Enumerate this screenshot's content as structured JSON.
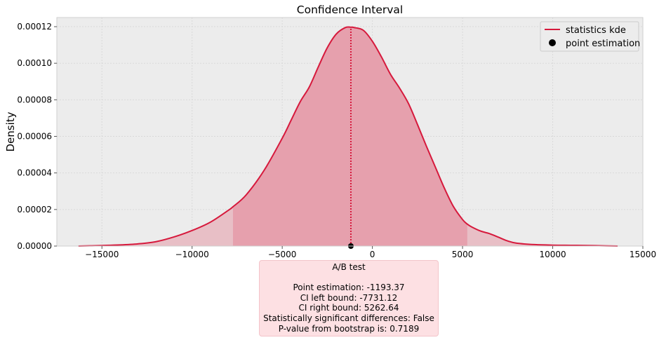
{
  "chart_data": {
    "type": "area",
    "title": "Confidence Interval",
    "xlabel": "",
    "ylabel": "Density",
    "xlim": [
      -17500,
      15000
    ],
    "ylim": [
      0,
      0.000125
    ],
    "xticks": [
      -15000,
      -10000,
      -5000,
      0,
      5000,
      10000,
      15000
    ],
    "xtick_labels": [
      "−15000",
      "−10000",
      "−5000",
      "0",
      "5000",
      "10000",
      "15000"
    ],
    "yticks": [
      0,
      2e-05,
      4e-05,
      6e-05,
      8e-05,
      0.0001,
      0.00012
    ],
    "ytick_labels": [
      "0.00000",
      "0.00002",
      "0.00004",
      "0.00006",
      "0.00008",
      "0.00010",
      "0.00012"
    ],
    "grid": true,
    "legend_position": "top-right",
    "series": [
      {
        "name": "statistics kde",
        "color": "#d6193c",
        "x": [
          -16300,
          -15000,
          -14000,
          -13000,
          -12000,
          -11000,
          -10000,
          -9000,
          -8000,
          -7731.12,
          -7000,
          -6000,
          -5000,
          -4500,
          -4000,
          -3500,
          -3000,
          -2500,
          -2000,
          -1500,
          -1193.37,
          -1000,
          -500,
          0,
          500,
          1000,
          1500,
          2000,
          2500,
          3000,
          3500,
          4000,
          4500,
          5000,
          5262.64,
          5500,
          6000,
          6500,
          7000,
          7500,
          8000,
          9000,
          10000,
          11000,
          12000,
          13000,
          13600
        ],
        "y": [
          0.0,
          3e-07,
          6e-07,
          1.2e-06,
          2.4e-06,
          5e-06,
          8.5e-06,
          1.3e-05,
          1.95e-05,
          2.15e-05,
          2.8e-05,
          4.15e-05,
          5.9e-05,
          6.9e-05,
          7.9e-05,
          8.7e-05,
          9.8e-05,
          0.0001085,
          0.000116,
          0.0001195,
          0.0001197,
          0.0001195,
          0.000118,
          0.000112,
          0.0001035,
          9.4e-05,
          8.65e-05,
          7.8e-05,
          6.65e-05,
          5.45e-05,
          4.3e-05,
          3.15e-05,
          2.15e-05,
          1.45e-05,
          1.2e-05,
          1.05e-05,
          8.2e-06,
          6.8e-06,
          4.8e-06,
          2.8e-06,
          1.6e-06,
          8e-07,
          5e-07,
          4e-07,
          3e-07,
          1e-07,
          0.0
        ]
      },
      {
        "name": "point estimation",
        "color": "#000000",
        "x": [
          -1193.37
        ],
        "y": [
          0
        ]
      }
    ],
    "ci": {
      "left": -7731.12,
      "right": 5262.64
    },
    "point_estimation": -1193.37
  },
  "colors": {
    "line": "#d6193c",
    "ci_fill": "#e6a0ad",
    "tail_fill": "#e8bfc6",
    "plot_bg": "#ececec",
    "grid": "#d9d9d9",
    "info_bg": "#fde0e3"
  },
  "info_box": {
    "heading": "A/B test",
    "lines": [
      "Point estimation: -1193.37",
      "CI left bound: -7731.12",
      "CI right bound: 5262.64",
      "Statistically significant differences: False",
      "P-value from bootstrap is: 0.7189"
    ]
  }
}
